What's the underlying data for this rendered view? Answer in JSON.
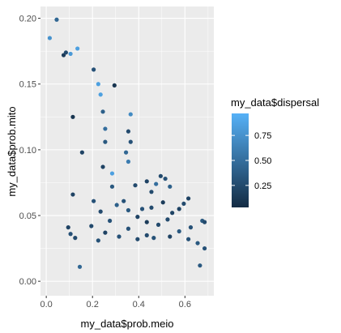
{
  "chart_data": {
    "type": "scatter",
    "xlabel": "my_data$prob.meio",
    "ylabel": "my_data$prob.mito",
    "xlim": [
      -0.025,
      0.725
    ],
    "ylim": [
      -0.011,
      0.209
    ],
    "x_ticks": [
      0.0,
      0.2,
      0.4,
      0.6
    ],
    "x_tick_labels": [
      "0.0",
      "0.2",
      "0.4",
      "0.6"
    ],
    "y_ticks": [
      0.0,
      0.05,
      0.1,
      0.15,
      0.2
    ],
    "y_tick_labels": [
      "0.00",
      "0.05",
      "0.10",
      "0.15",
      "0.20"
    ],
    "grid": true,
    "legend": {
      "title": "my_data$dispersal",
      "position": "right",
      "type": "colorbar",
      "range": [
        0.03,
        0.97
      ],
      "ticks": [
        0.25,
        0.5,
        0.75
      ],
      "tick_labels": [
        "0.25",
        "0.50",
        "0.75"
      ],
      "color_low": "#132B43",
      "color_high": "#56B1F7"
    },
    "colors": {
      "panel": "#EBEBEB",
      "grid_major": "#FFFFFF"
    },
    "points": [
      [
        0.045,
        0.199,
        0.45
      ],
      [
        0.015,
        0.185,
        0.75
      ],
      [
        0.075,
        0.172,
        0.15
      ],
      [
        0.085,
        0.174,
        0.25
      ],
      [
        0.105,
        0.173,
        0.8
      ],
      [
        0.135,
        0.177,
        0.85
      ],
      [
        0.205,
        0.161,
        0.3
      ],
      [
        0.225,
        0.15,
        0.85
      ],
      [
        0.295,
        0.149,
        0.1
      ],
      [
        0.235,
        0.142,
        0.85
      ],
      [
        0.245,
        0.129,
        0.4
      ],
      [
        0.115,
        0.125,
        0.1
      ],
      [
        0.255,
        0.116,
        0.5
      ],
      [
        0.365,
        0.127,
        0.7
      ],
      [
        0.355,
        0.114,
        0.25
      ],
      [
        0.255,
        0.106,
        0.35
      ],
      [
        0.155,
        0.098,
        0.2
      ],
      [
        0.345,
        0.098,
        0.45
      ],
      [
        0.365,
        0.106,
        0.3
      ],
      [
        0.355,
        0.091,
        0.6
      ],
      [
        0.285,
        0.072,
        0.35
      ],
      [
        0.115,
        0.066,
        0.2
      ],
      [
        0.245,
        0.087,
        0.2
      ],
      [
        0.285,
        0.082,
        0.85
      ],
      [
        0.495,
        0.08,
        0.25
      ],
      [
        0.515,
        0.078,
        0.3
      ],
      [
        0.435,
        0.076,
        0.2
      ],
      [
        0.385,
        0.073,
        0.25
      ],
      [
        0.475,
        0.074,
        0.5
      ],
      [
        0.535,
        0.072,
        0.4
      ],
      [
        0.455,
        0.068,
        0.25
      ],
      [
        0.335,
        0.061,
        0.3
      ],
      [
        0.615,
        0.063,
        0.2
      ],
      [
        0.595,
        0.059,
        0.25
      ],
      [
        0.205,
        0.061,
        0.3
      ],
      [
        0.505,
        0.06,
        0.15
      ],
      [
        0.305,
        0.058,
        0.4
      ],
      [
        0.415,
        0.055,
        0.3
      ],
      [
        0.355,
        0.054,
        0.35
      ],
      [
        0.575,
        0.055,
        0.2
      ],
      [
        0.455,
        0.056,
        0.25
      ],
      [
        0.235,
        0.053,
        0.25
      ],
      [
        0.545,
        0.052,
        0.2
      ],
      [
        0.395,
        0.049,
        0.2
      ],
      [
        0.525,
        0.047,
        0.25
      ],
      [
        0.275,
        0.046,
        0.3
      ],
      [
        0.675,
        0.046,
        0.35
      ],
      [
        0.435,
        0.045,
        0.15
      ],
      [
        0.485,
        0.043,
        0.25
      ],
      [
        0.625,
        0.041,
        0.3
      ],
      [
        0.195,
        0.042,
        0.25
      ],
      [
        0.355,
        0.04,
        0.3
      ],
      [
        0.255,
        0.037,
        0.2
      ],
      [
        0.575,
        0.038,
        0.35
      ],
      [
        0.435,
        0.035,
        0.25
      ],
      [
        0.315,
        0.034,
        0.3
      ],
      [
        0.465,
        0.033,
        0.3
      ],
      [
        0.535,
        0.034,
        0.2
      ],
      [
        0.395,
        0.032,
        0.25
      ],
      [
        0.225,
        0.031,
        0.3
      ],
      [
        0.615,
        0.032,
        0.3
      ],
      [
        0.655,
        0.029,
        0.35
      ],
      [
        0.095,
        0.041,
        0.2
      ],
      [
        0.105,
        0.036,
        0.3
      ],
      [
        0.125,
        0.033,
        0.25
      ],
      [
        0.145,
        0.011,
        0.45
      ],
      [
        0.665,
        0.012,
        0.35
      ],
      [
        0.685,
        0.025,
        0.3
      ],
      [
        0.685,
        0.045,
        0.25
      ]
    ]
  }
}
